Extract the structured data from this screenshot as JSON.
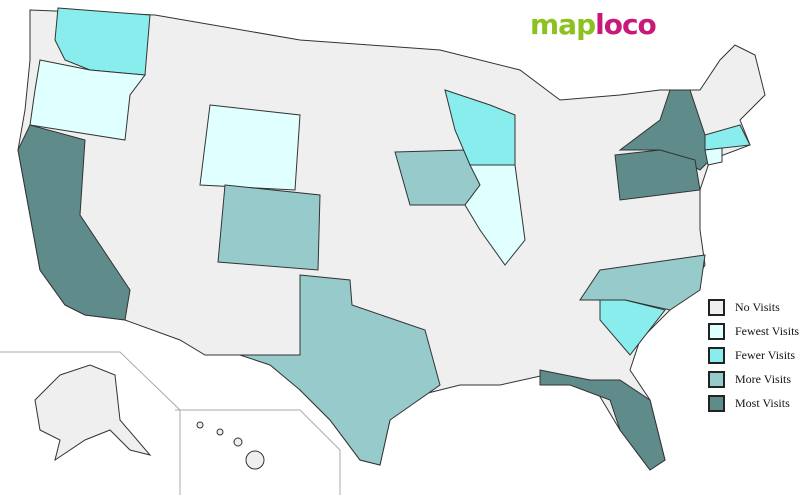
{
  "logo": {
    "part1": "map",
    "part2": "loco"
  },
  "colors": {
    "no": "#efefef",
    "fewest": "#e0ffff",
    "fewer": "#8aeded",
    "more": "#97caca",
    "most": "#5f8b8b",
    "border": "#333333"
  },
  "legend": [
    {
      "label": "No Visits",
      "level": "no"
    },
    {
      "label": "Fewest Visits",
      "level": "fewest"
    },
    {
      "label": "Fewer Visits",
      "level": "fewer"
    },
    {
      "label": "More Visits",
      "level": "more"
    },
    {
      "label": "Most Visits",
      "level": "most"
    }
  ],
  "states": {
    "Washington": "fewer",
    "Oregon": "fewest",
    "California": "most",
    "Wyoming": "fewest",
    "Colorado": "more",
    "Texas": "more",
    "Iowa": "more",
    "Wisconsin": "fewer",
    "Illinois": "fewest",
    "North Carolina": "more",
    "South Carolina": "fewer",
    "Florida": "most",
    "New York": "most",
    "Pennsylvania": "most",
    "Massachusetts": "fewer",
    "Connecticut": "fewest",
    "Alaska": "no",
    "Hawaii": "no"
  }
}
